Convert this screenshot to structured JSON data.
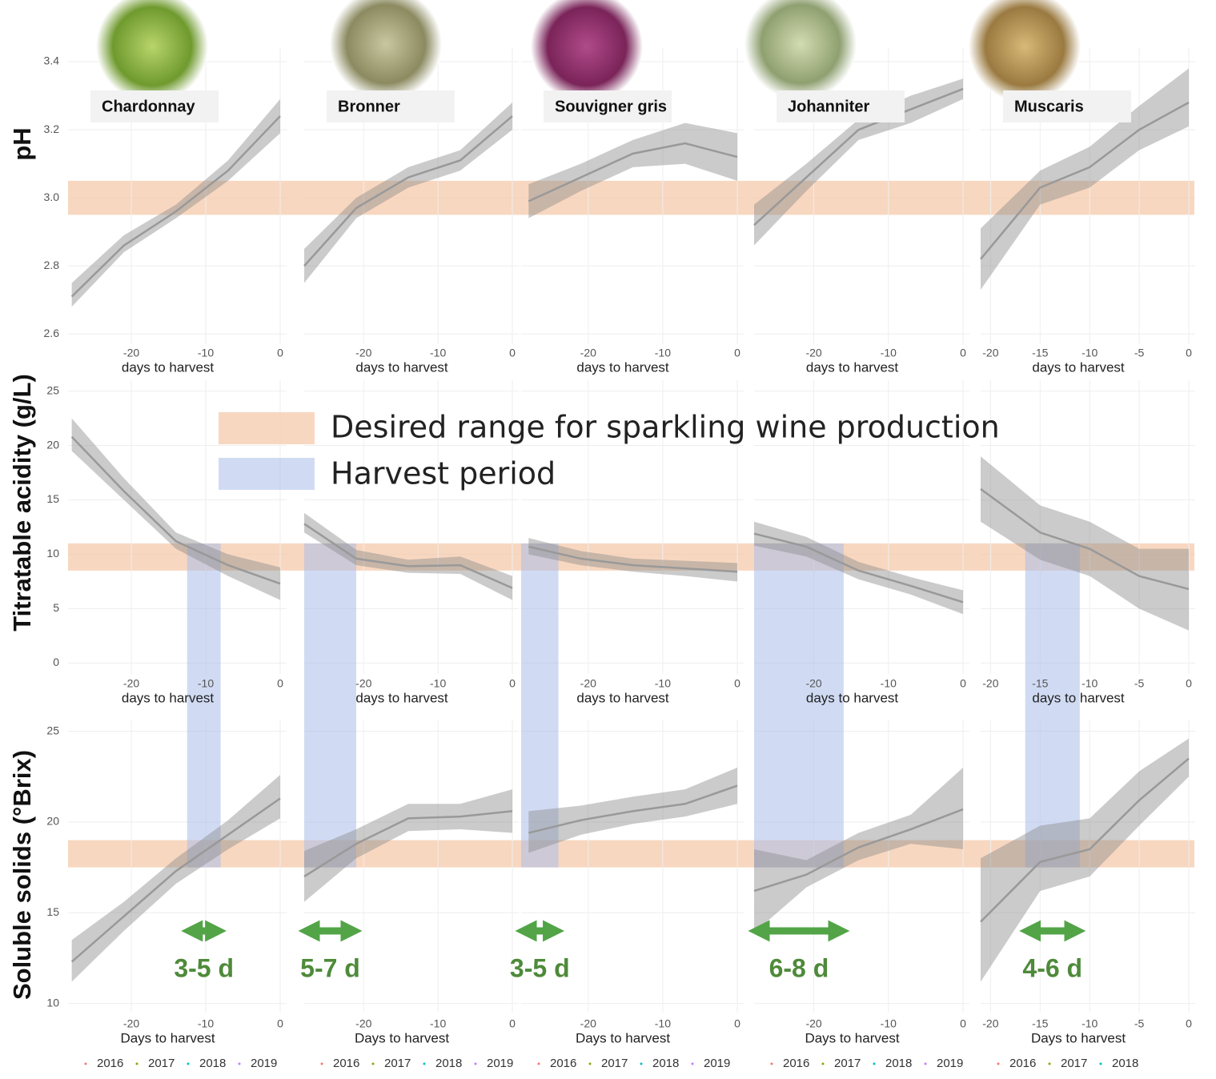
{
  "legend": {
    "desired_label": "Desired range for sparkling wine production",
    "desired_color": "#f5c6a5",
    "harvest_label": "Harvest period",
    "harvest_color": "#a9bde9"
  },
  "varieties": [
    {
      "name": "Chardonnay",
      "harvest_period": [
        -12.5,
        -8
      ],
      "harvest_label": "3-5 d",
      "years": [
        {
          "name": "2016",
          "color": "#f8766d"
        },
        {
          "name": "2017",
          "color": "#7cae00"
        },
        {
          "name": "2018",
          "color": "#00bfc4"
        },
        {
          "name": "2019",
          "color": "#c77cff"
        }
      ]
    },
    {
      "name": "Bronner",
      "harvest_period": [
        -28,
        -21
      ],
      "harvest_label": "5-7 d",
      "years": [
        {
          "name": "2016",
          "color": "#f8766d"
        },
        {
          "name": "2017",
          "color": "#7cae00"
        },
        {
          "name": "2018",
          "color": "#00bfc4"
        },
        {
          "name": "2019",
          "color": "#c77cff"
        }
      ]
    },
    {
      "name": "Souvigner gris",
      "harvest_period": [
        -29,
        -24
      ],
      "harvest_label": "3-5 d",
      "years": [
        {
          "name": "2016",
          "color": "#f8766d"
        },
        {
          "name": "2017",
          "color": "#7cae00"
        },
        {
          "name": "2018",
          "color": "#00bfc4"
        },
        {
          "name": "2019",
          "color": "#c77cff"
        }
      ]
    },
    {
      "name": "Johanniter",
      "harvest_period": [
        -28,
        -16
      ],
      "harvest_label": "6-8 d",
      "years": [
        {
          "name": "2016",
          "color": "#f8766d"
        },
        {
          "name": "2017",
          "color": "#7cae00"
        },
        {
          "name": "2018",
          "color": "#00bfc4"
        },
        {
          "name": "2019",
          "color": "#c77cff"
        }
      ]
    },
    {
      "name": "Muscaris",
      "harvest_period": [
        -16.5,
        -11
      ],
      "harvest_label": "4-6 d",
      "years": [
        {
          "name": "2016",
          "color": "#f8766d"
        },
        {
          "name": "2017",
          "color": "#7cae00"
        },
        {
          "name": "2018",
          "color": "#00bfc4"
        }
      ]
    }
  ],
  "chart_data": [
    {
      "type": "line",
      "y_label": "pH",
      "ylim": [
        2.57,
        3.44
      ],
      "yticks": [
        2.6,
        2.8,
        {
          "value": 3,
          "label": "3.0"
        },
        3.2,
        3.4
      ],
      "desired_range": [
        2.95,
        3.05
      ],
      "panels": [
        {
          "x_label": "days to harvest",
          "xlim": [
            -28.5,
            0
          ],
          "xticks": [
            -20,
            -10,
            0
          ],
          "x": [
            -28,
            -21,
            -14,
            -7,
            0
          ],
          "values": [
            2.71,
            2.86,
            2.96,
            3.08,
            3.24
          ],
          "lower": [
            2.68,
            2.84,
            2.94,
            3.05,
            3.19
          ],
          "upper": [
            2.75,
            2.89,
            2.98,
            3.11,
            3.29
          ]
        },
        {
          "x_label": "days to harvest",
          "xlim": [
            -28,
            0
          ],
          "xticks": [
            -20,
            -10,
            0
          ],
          "x": [
            -28,
            -21,
            -14,
            -7,
            0
          ],
          "values": [
            2.8,
            2.97,
            3.06,
            3.11,
            3.24
          ],
          "lower": [
            2.75,
            2.94,
            3.03,
            3.08,
            3.2
          ],
          "upper": [
            2.85,
            3.0,
            3.09,
            3.14,
            3.28
          ]
        },
        {
          "x_label": "days to harvest",
          "xlim": [
            -29,
            0
          ],
          "xticks": [
            -20,
            -10,
            0
          ],
          "x": [
            -28,
            -21,
            -14,
            -7,
            0
          ],
          "values": [
            2.99,
            3.06,
            3.13,
            3.16,
            3.12
          ],
          "lower": [
            2.94,
            3.02,
            3.09,
            3.1,
            3.05
          ],
          "upper": [
            3.04,
            3.1,
            3.17,
            3.22,
            3.19
          ]
        },
        {
          "x_label": "days to harvest",
          "xlim": [
            -28,
            0
          ],
          "xticks": [
            -20,
            -10,
            0
          ],
          "x": [
            -28,
            -21,
            -14,
            -7,
            0
          ],
          "values": [
            2.92,
            3.06,
            3.2,
            3.26,
            3.32
          ],
          "lower": [
            2.86,
            3.02,
            3.17,
            3.22,
            3.29
          ],
          "upper": [
            2.98,
            3.1,
            3.23,
            3.3,
            3.35
          ]
        },
        {
          "x_label": "days to harvest",
          "xlim": [
            -21,
            0
          ],
          "xticks": [
            -20,
            -15,
            -10,
            -5,
            0
          ],
          "x": [
            -21,
            -15,
            -10,
            -5,
            0
          ],
          "values": [
            2.82,
            3.03,
            3.09,
            3.2,
            3.28
          ],
          "lower": [
            2.73,
            2.98,
            3.03,
            3.14,
            3.21
          ],
          "upper": [
            2.91,
            3.08,
            3.15,
            3.27,
            3.38
          ]
        }
      ]
    },
    {
      "type": "line",
      "y_label": "Titratable acidity (g/L)",
      "ylim": [
        -1,
        26
      ],
      "yticks": [
        0,
        5,
        10,
        15,
        20,
        25
      ],
      "desired_range": [
        8.5,
        11
      ],
      "panels": [
        {
          "x_label": "days to harvest",
          "xlim": [
            -28.5,
            0
          ],
          "xticks": [
            -20,
            -10,
            0
          ],
          "x": [
            -28,
            -21,
            -14,
            -7,
            0
          ],
          "values": [
            20.8,
            15.8,
            11.2,
            9.0,
            7.3
          ],
          "lower": [
            19.5,
            15,
            10.5,
            8,
            5.8
          ],
          "upper": [
            22.5,
            17,
            12,
            10,
            8.8
          ]
        },
        {
          "x_label": "days to harvest",
          "xlim": [
            -28,
            0
          ],
          "xticks": [
            -20,
            -10,
            0
          ],
          "x": [
            -28,
            -21,
            -14,
            -7,
            0
          ],
          "values": [
            12.8,
            9.6,
            8.9,
            9.0,
            6.9
          ],
          "lower": [
            12,
            9,
            8.3,
            8.2,
            5.8
          ],
          "upper": [
            13.8,
            10.4,
            9.5,
            9.8,
            8.0
          ]
        },
        {
          "x_label": "days to harvest",
          "xlim": [
            -29,
            0
          ],
          "xticks": [
            -20,
            -10,
            0
          ],
          "x": [
            -28,
            -21,
            -14,
            -7,
            0
          ],
          "values": [
            10.7,
            9.6,
            9.0,
            8.7,
            8.4
          ],
          "lower": [
            10,
            9,
            8.4,
            8,
            7.5
          ],
          "upper": [
            11.5,
            10.3,
            9.6,
            9.4,
            9.2
          ]
        },
        {
          "x_label": "days to harvest",
          "xlim": [
            -28,
            0
          ],
          "xticks": [
            -20,
            -10,
            0
          ],
          "x": [
            -28,
            -21,
            -14,
            -7,
            0
          ],
          "values": [
            11.9,
            10.7,
            8.5,
            7.1,
            5.6
          ],
          "lower": [
            10.8,
            9.8,
            7.7,
            6.3,
            4.5
          ],
          "upper": [
            13,
            11.6,
            9.3,
            7.9,
            6.7
          ]
        },
        {
          "x_label": "days to harvest",
          "xlim": [
            -21,
            0
          ],
          "xticks": [
            -20,
            -15,
            -10,
            -5,
            0
          ],
          "x": [
            -21,
            -15,
            -10,
            -5,
            0
          ],
          "values": [
            16,
            12,
            10.5,
            8,
            6.8
          ],
          "lower": [
            13,
            9.5,
            8,
            5,
            3
          ],
          "upper": [
            19,
            14.5,
            13,
            10.5,
            10.5
          ]
        }
      ]
    },
    {
      "type": "line",
      "y_label": "Soluble solids (°Brix)",
      "ylim": [
        9.5,
        25.6
      ],
      "yticks": [
        10,
        15,
        20,
        25
      ],
      "desired_range": [
        17.5,
        19
      ],
      "panels": [
        {
          "x_label": "Days to harvest",
          "xlim": [
            -28.5,
            0
          ],
          "xticks": [
            -20,
            -10,
            0
          ],
          "x": [
            -28,
            -21,
            -14,
            -7,
            0
          ],
          "values": [
            12.3,
            14.8,
            17.3,
            19.3,
            21.3
          ],
          "lower": [
            11.2,
            14,
            16.6,
            18.5,
            20.2
          ],
          "upper": [
            13.5,
            15.6,
            18,
            20.1,
            22.6
          ]
        },
        {
          "x_label": "Days to harvest",
          "xlim": [
            -28,
            0
          ],
          "xticks": [
            -20,
            -10,
            0
          ],
          "x": [
            -28,
            -21,
            -14,
            -7,
            0
          ],
          "values": [
            17,
            18.8,
            20.2,
            20.3,
            20.6
          ],
          "lower": [
            15.6,
            18,
            19.5,
            19.6,
            19.4
          ],
          "upper": [
            18.4,
            19.6,
            21,
            21,
            21.8
          ]
        },
        {
          "x_label": "Days to harvest",
          "xlim": [
            -29,
            0
          ],
          "xticks": [
            -20,
            -10,
            0
          ],
          "x": [
            -28,
            -21,
            -14,
            -7,
            0
          ],
          "values": [
            19.4,
            20.1,
            20.6,
            21.0,
            22.0
          ],
          "lower": [
            18.3,
            19.3,
            19.9,
            20.3,
            21.0
          ],
          "upper": [
            20.6,
            20.9,
            21.4,
            21.8,
            23.0
          ]
        },
        {
          "x_label": "Days to harvest",
          "xlim": [
            -28,
            0
          ],
          "xticks": [
            -20,
            -10,
            0
          ],
          "x": [
            -28,
            -21,
            -14,
            -7,
            0
          ],
          "values": [
            16.2,
            17.1,
            18.6,
            19.6,
            20.7
          ],
          "lower": [
            13.9,
            16.4,
            17.9,
            18.8,
            18.5
          ],
          "upper": [
            18.5,
            17.9,
            19.4,
            20.4,
            23.0
          ]
        },
        {
          "x_label": "Days to harvest",
          "xlim": [
            -21,
            0
          ],
          "xticks": [
            -20,
            -15,
            -10,
            -5,
            0
          ],
          "x": [
            -21,
            -15,
            -10,
            -5,
            0
          ],
          "values": [
            14.5,
            17.8,
            18.5,
            21.2,
            23.5
          ],
          "lower": [
            11.2,
            16.2,
            17,
            19.8,
            22.5
          ],
          "upper": [
            18,
            19.8,
            20.2,
            22.8,
            24.6
          ]
        }
      ]
    }
  ]
}
